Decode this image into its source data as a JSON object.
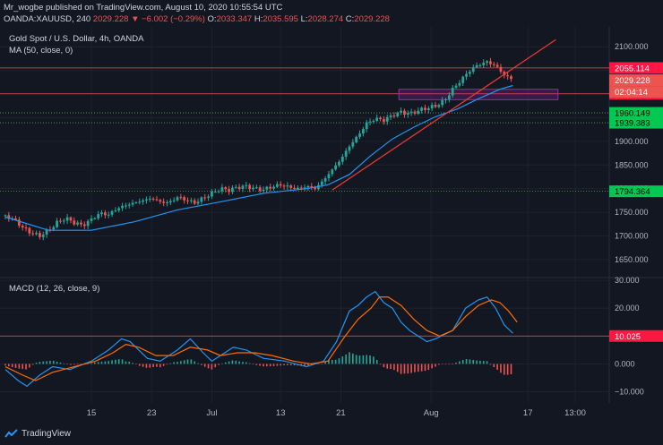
{
  "header": {
    "published": "Mr_wogbe published on TradingView.com, August 10, 2020 10:55:54 UTC",
    "symbol": "OANDA:XAUUSD, 240",
    "last": "2029.228",
    "change": "−6.002 (−0.29%)",
    "o_label": "O:",
    "o": "2033.347",
    "h_label": "H:",
    "h": "2035.595",
    "l_label": "L:",
    "l": "2028.274",
    "c_label": "C:",
    "c": "2029.228"
  },
  "legend": {
    "title": "Gold Spot / U.S. Dollar, 4h, OANDA",
    "ma": "MA (50, close, 0)",
    "macd": "MACD (12, 26, close, 9)"
  },
  "colors": {
    "background": "#131722",
    "up": "#26a69a",
    "down": "#ef5350",
    "ma": "#2196f3",
    "macd_line": "#2196f3",
    "signal_line": "#ff6d00",
    "trendline": "#e53935",
    "zone": "#9c27b0"
  },
  "footer": {
    "brand": "TradingView"
  },
  "chart_data": [
    {
      "type": "candlestick",
      "title": "Gold Spot / U.S. Dollar, 4h, OANDA",
      "y_ticks": [
        1650,
        1700,
        1750,
        1800,
        1850,
        1900,
        1950,
        2000,
        2050,
        2100
      ],
      "y_tick_labels": [
        "1650.000",
        "1700.000",
        "1750.000",
        "1800.000",
        "1850.000",
        "1900.000",
        "1950.000",
        "2000.000",
        "2050.000",
        "2100.000"
      ],
      "ylim": [
        1612,
        2142
      ],
      "x_labels": [
        "15",
        "23",
        "Jul",
        "13",
        "21",
        "Aug",
        "17",
        "13:00"
      ],
      "price_path": [
        [
          0,
          1742
        ],
        [
          4,
          1735
        ],
        [
          8,
          1718
        ],
        [
          12,
          1706
        ],
        [
          16,
          1700
        ],
        [
          20,
          1712
        ],
        [
          24,
          1728
        ],
        [
          28,
          1738
        ],
        [
          32,
          1728
        ],
        [
          36,
          1722
        ],
        [
          40,
          1735
        ],
        [
          44,
          1748
        ],
        [
          48,
          1745
        ],
        [
          52,
          1758
        ],
        [
          56,
          1765
        ],
        [
          60,
          1770
        ],
        [
          64,
          1775
        ],
        [
          68,
          1780
        ],
        [
          72,
          1772
        ],
        [
          76,
          1770
        ],
        [
          80,
          1782
        ],
        [
          84,
          1776
        ],
        [
          88,
          1770
        ],
        [
          92,
          1780
        ],
        [
          96,
          1790
        ],
        [
          100,
          1800
        ],
        [
          104,
          1797
        ],
        [
          108,
          1803
        ],
        [
          112,
          1805
        ],
        [
          116,
          1800
        ],
        [
          120,
          1798
        ],
        [
          124,
          1804
        ],
        [
          128,
          1808
        ],
        [
          132,
          1803
        ],
        [
          136,
          1800
        ],
        [
          140,
          1805
        ],
        [
          144,
          1800
        ],
        [
          148,
          1818
        ],
        [
          152,
          1840
        ],
        [
          156,
          1862
        ],
        [
          160,
          1890
        ],
        [
          164,
          1912
        ],
        [
          168,
          1938
        ],
        [
          172,
          1948
        ],
        [
          176,
          1945
        ],
        [
          180,
          1955
        ],
        [
          184,
          1962
        ],
        [
          188,
          1958
        ],
        [
          192,
          1965
        ],
        [
          196,
          1970
        ],
        [
          200,
          1975
        ],
        [
          204,
          1985
        ],
        [
          208,
          2010
        ],
        [
          212,
          2030
        ],
        [
          216,
          2050
        ],
        [
          220,
          2062
        ],
        [
          224,
          2068
        ],
        [
          228,
          2060
        ],
        [
          232,
          2040
        ],
        [
          234,
          2036
        ],
        [
          236,
          2029
        ]
      ],
      "ma_path": [
        [
          0,
          1740
        ],
        [
          20,
          1712
        ],
        [
          40,
          1712
        ],
        [
          60,
          1730
        ],
        [
          80,
          1755
        ],
        [
          100,
          1772
        ],
        [
          120,
          1790
        ],
        [
          140,
          1800
        ],
        [
          150,
          1808
        ],
        [
          160,
          1830
        ],
        [
          170,
          1870
        ],
        [
          180,
          1905
        ],
        [
          190,
          1930
        ],
        [
          200,
          1952
        ],
        [
          210,
          1968
        ],
        [
          220,
          1990
        ],
        [
          230,
          2010
        ],
        [
          236,
          2018
        ]
      ],
      "trendline": [
        [
          152,
          1797
        ],
        [
          256,
          2115
        ]
      ],
      "zone": {
        "x": [
          183,
          257
        ],
        "y_low": 1988,
        "y_high": 2010
      },
      "horizontal_levels": [
        {
          "value": 2055.114,
          "label": "2055.114",
          "color": "#ef5350",
          "style": "solid"
        },
        {
          "value": 2000.508,
          "label": "2000.508",
          "color": "#ef5350",
          "style": "solid"
        },
        {
          "value": 1960.149,
          "label": "1960.149",
          "color": "#4caf50",
          "style": "dotted"
        },
        {
          "value": 1939.383,
          "label": "1939.383",
          "color": "#4caf50",
          "style": "dotted"
        },
        {
          "value": 1794.364,
          "label": "1794.364",
          "color": "#4caf50",
          "style": "dotted"
        }
      ],
      "last_price": {
        "value": 2029.228,
        "label": "2029.228",
        "countdown": "02:04:14"
      }
    },
    {
      "type": "macd",
      "title": "MACD (12, 26, close, 9)",
      "y_ticks": [
        30,
        20,
        10,
        0,
        -10
      ],
      "y_tick_labels": [
        "30.000",
        "20.000",
        "10.000",
        "0.000",
        "−10.000"
      ],
      "ylim": [
        -14,
        31
      ],
      "macd_path": [
        [
          0,
          -2
        ],
        [
          6,
          -6
        ],
        [
          10,
          -8
        ],
        [
          16,
          -4
        ],
        [
          22,
          -1
        ],
        [
          30,
          -2
        ],
        [
          40,
          1
        ],
        [
          48,
          5
        ],
        [
          54,
          9
        ],
        [
          58,
          8
        ],
        [
          66,
          2
        ],
        [
          72,
          1
        ],
        [
          80,
          5
        ],
        [
          86,
          9
        ],
        [
          92,
          4
        ],
        [
          96,
          1
        ],
        [
          100,
          3
        ],
        [
          106,
          6
        ],
        [
          112,
          5
        ],
        [
          120,
          2
        ],
        [
          130,
          1
        ],
        [
          140,
          -1
        ],
        [
          148,
          1
        ],
        [
          154,
          8
        ],
        [
          160,
          19
        ],
        [
          164,
          21
        ],
        [
          168,
          24
        ],
        [
          172,
          26
        ],
        [
          176,
          22
        ],
        [
          180,
          20
        ],
        [
          184,
          15
        ],
        [
          188,
          12
        ],
        [
          192,
          10
        ],
        [
          196,
          8
        ],
        [
          200,
          9
        ],
        [
          208,
          12
        ],
        [
          214,
          20
        ],
        [
          220,
          23
        ],
        [
          224,
          24
        ],
        [
          228,
          20
        ],
        [
          232,
          14
        ],
        [
          236,
          11
        ]
      ],
      "signal_path": [
        [
          0,
          -1
        ],
        [
          8,
          -4
        ],
        [
          14,
          -6
        ],
        [
          22,
          -3
        ],
        [
          32,
          -1
        ],
        [
          42,
          1
        ],
        [
          50,
          4
        ],
        [
          56,
          7
        ],
        [
          62,
          6
        ],
        [
          70,
          3
        ],
        [
          78,
          3
        ],
        [
          86,
          6
        ],
        [
          94,
          5
        ],
        [
          100,
          3
        ],
        [
          108,
          4
        ],
        [
          116,
          4
        ],
        [
          124,
          3
        ],
        [
          134,
          1
        ],
        [
          142,
          0
        ],
        [
          150,
          1
        ],
        [
          158,
          10
        ],
        [
          164,
          16
        ],
        [
          170,
          20
        ],
        [
          174,
          24
        ],
        [
          178,
          24
        ],
        [
          184,
          21
        ],
        [
          190,
          16
        ],
        [
          196,
          12
        ],
        [
          202,
          10
        ],
        [
          208,
          12
        ],
        [
          214,
          17
        ],
        [
          220,
          21
        ],
        [
          226,
          23
        ],
        [
          230,
          22
        ],
        [
          234,
          19
        ],
        [
          238,
          15
        ]
      ],
      "level": {
        "value": 10.025,
        "label": "10.025"
      }
    }
  ]
}
